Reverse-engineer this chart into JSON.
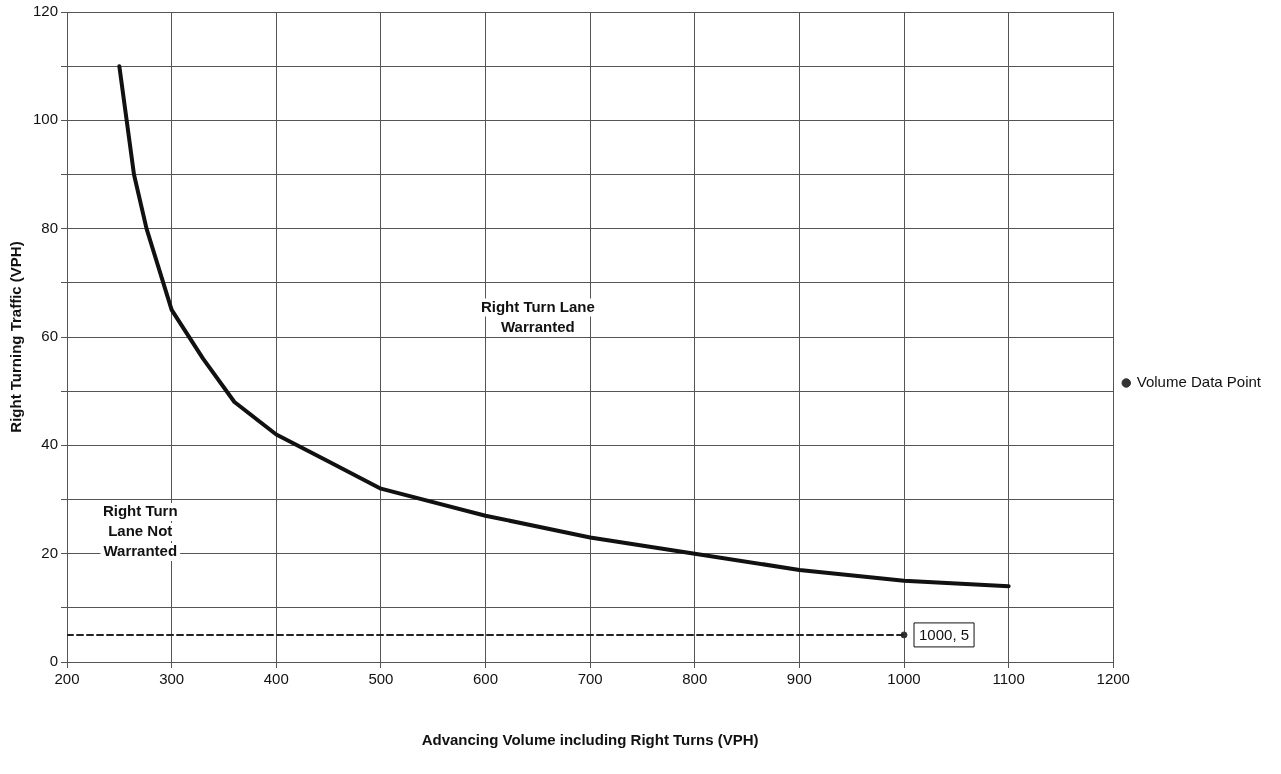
{
  "chart_data": {
    "type": "line",
    "xlabel": "Advancing Volume including Right Turns (VPH)",
    "ylabel": "Right Turning Traffic (VPH)",
    "xlim": [
      200,
      1200
    ],
    "xticks": [
      200,
      300,
      400,
      500,
      600,
      700,
      800,
      900,
      1000,
      1100,
      1200
    ],
    "ylim": [
      0,
      120
    ],
    "yticks": [
      0,
      {
        "value": 10,
        "label": null
      },
      20,
      {
        "value": 30,
        "label": null
      },
      40,
      {
        "value": 50,
        "label": null
      },
      60,
      {
        "value": 70,
        "label": null
      },
      80,
      {
        "value": 90,
        "label": null
      },
      100,
      {
        "value": 110,
        "label": null
      },
      120
    ],
    "grid": true,
    "legend": "right",
    "annotations": [
      "Right Turn Lane Warranted",
      "Right Turn Lane Not Warranted"
    ],
    "series": [
      {
        "type": "line",
        "color": "#111111",
        "marker": "none",
        "line_style": "solid",
        "x": [
          250,
          264,
          276,
          300,
          330,
          360,
          400,
          450,
          500,
          600,
          700,
          800,
          900,
          1000,
          1100
        ],
        "values": [
          110,
          90,
          80,
          65,
          56,
          48,
          42,
          37,
          32,
          27,
          23,
          20,
          17,
          15,
          14
        ]
      },
      {
        "type": "line",
        "color": "#222222",
        "marker": "none",
        "line_style": "dashed",
        "x": [
          200,
          1000
        ],
        "values": [
          5,
          5
        ]
      },
      {
        "type": "scatter",
        "name": "Volume Data Point",
        "color": "#333333",
        "marker": "circle",
        "x": [
          1000
        ],
        "values": [
          5
        ],
        "value_labels": [
          "1000, 5"
        ]
      }
    ]
  }
}
